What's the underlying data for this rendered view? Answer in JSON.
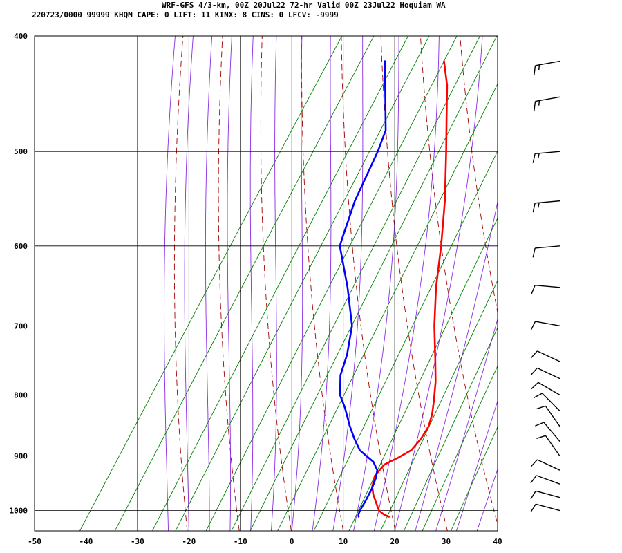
{
  "header": {
    "line1": "WRF-GFS 4/3-km, 00Z 20Jul22 72-hr Valid 00Z 23Jul22 Hoquiam WA",
    "line2": "220723/0000 99999  KHQM    CAPE:     0 LIFT:    11 KINX:     8 CINS:     0 LFCV: -9999"
  },
  "colors": {
    "temperature": "#ff0000",
    "dewpoint": "#0000ff",
    "isotherm_grid": "#000000",
    "dry_adiabat": "#a00000",
    "moist_adiabat": "#8a2be2",
    "mixing_ratio": "#008000",
    "wind_barb": "#000000"
  },
  "chart_data": {
    "type": "line",
    "subtype": "skew-T log-P sounding",
    "x_axis": {
      "range": [
        -50,
        40
      ],
      "ticks": [
        -50,
        -40,
        -30,
        -20,
        -10,
        0,
        10,
        20,
        30,
        40
      ]
    },
    "y_axis": {
      "range": [
        1040,
        400
      ],
      "scale": "log",
      "ticks": [
        400,
        500,
        600,
        700,
        800,
        900,
        1000
      ]
    },
    "grid": true,
    "series": [
      {
        "key": "temperature",
        "points": [
          [
            1012,
            17.2
          ],
          [
            1008,
            16.0
          ],
          [
            1000,
            14.5
          ],
          [
            985,
            13.0
          ],
          [
            970,
            11.5
          ],
          [
            955,
            10.3
          ],
          [
            935,
            9.5
          ],
          [
            915,
            10.0
          ],
          [
            902,
            12.0
          ],
          [
            890,
            13.5
          ],
          [
            870,
            14.0
          ],
          [
            850,
            14.0
          ],
          [
            830,
            13.2
          ],
          [
            810,
            12.0
          ],
          [
            780,
            10.0
          ],
          [
            750,
            7.5
          ],
          [
            700,
            3.0
          ],
          [
            650,
            -1.3
          ],
          [
            600,
            -5.3
          ],
          [
            550,
            -10.0
          ],
          [
            500,
            -15.7
          ],
          [
            470,
            -19.5
          ],
          [
            440,
            -23.5
          ],
          [
            420,
            -27.0
          ]
        ]
      },
      {
        "key": "dewpoint",
        "points": [
          [
            1012,
            11.3
          ],
          [
            1008,
            11.0
          ],
          [
            1000,
            10.8
          ],
          [
            980,
            10.7
          ],
          [
            960,
            10.5
          ],
          [
            940,
            10.0
          ],
          [
            925,
            9.3
          ],
          [
            910,
            7.5
          ],
          [
            900,
            5.5
          ],
          [
            890,
            3.5
          ],
          [
            870,
            1.0
          ],
          [
            850,
            -1.3
          ],
          [
            820,
            -4.5
          ],
          [
            800,
            -7.0
          ],
          [
            770,
            -9.3
          ],
          [
            740,
            -10.5
          ],
          [
            700,
            -13.0
          ],
          [
            650,
            -18.5
          ],
          [
            600,
            -25.0
          ],
          [
            590,
            -25.5
          ],
          [
            550,
            -27.5
          ],
          [
            500,
            -29.0
          ],
          [
            480,
            -30.0
          ],
          [
            420,
            -38.5
          ]
        ]
      }
    ],
    "wind_barbs": [
      {
        "p": 1000,
        "dir": 285,
        "speed": 10
      },
      {
        "p": 975,
        "dir": 285,
        "speed": 10
      },
      {
        "p": 950,
        "dir": 290,
        "speed": 10
      },
      {
        "p": 925,
        "dir": 295,
        "speed": 10
      },
      {
        "p": 900,
        "dir": 325,
        "speed": 10
      },
      {
        "p": 875,
        "dir": 320,
        "speed": 10
      },
      {
        "p": 850,
        "dir": 325,
        "speed": 10
      },
      {
        "p": 825,
        "dir": 315,
        "speed": 10
      },
      {
        "p": 800,
        "dir": 300,
        "speed": 10
      },
      {
        "p": 775,
        "dir": 295,
        "speed": 10
      },
      {
        "p": 750,
        "dir": 295,
        "speed": 10
      },
      {
        "p": 700,
        "dir": 280,
        "speed": 10
      },
      {
        "p": 650,
        "dir": 275,
        "speed": 10
      },
      {
        "p": 600,
        "dir": 265,
        "speed": 10
      },
      {
        "p": 550,
        "dir": 265,
        "speed": 15
      },
      {
        "p": 500,
        "dir": 265,
        "speed": 15
      },
      {
        "p": 450,
        "dir": 260,
        "speed": 15
      },
      {
        "p": 420,
        "dir": 260,
        "speed": 15
      }
    ]
  }
}
